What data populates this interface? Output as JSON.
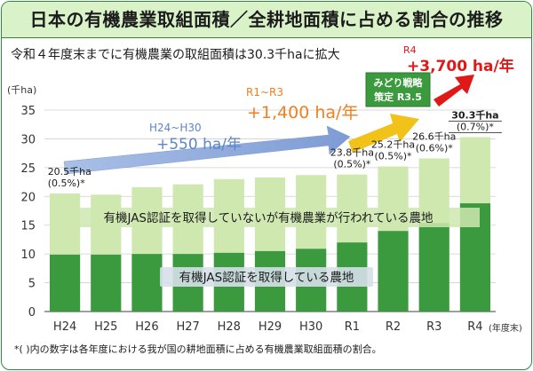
{
  "title": "日本の有機農業取組面積／全耕地面積に占める割合の推移",
  "subtitle": "令和４年度末までに有機農業の取組面積は30.3千haに拡大",
  "footnote": "*( )内の数字は各年度における我が国の耕地面積に占める有機農業取組面積の割合。",
  "colors": {
    "non_jas": "#cfe8b0",
    "jas": "#3a9a3d",
    "frame": "#2e8b3a",
    "title_band": "#d9f2c8",
    "blue_arrow": "#8aa6d8",
    "yellow_arrow": "#f0c21a",
    "red_arrow": "#e01818",
    "blue_text": "#5b86c8",
    "orange_text": "#f08020",
    "red_text": "#e01818",
    "green_box": "#3a9a3d"
  },
  "chart_data": {
    "type": "bar",
    "stacked": true,
    "categories": [
      "H24",
      "H25",
      "H26",
      "H27",
      "H28",
      "H29",
      "H30",
      "R1",
      "R2",
      "R3",
      "R4"
    ],
    "x_unit": "(年度末)",
    "ylabel": "(千ha)",
    "ylim": [
      0,
      35
    ],
    "yticks": [
      0,
      5,
      10,
      15,
      20,
      25,
      30,
      35
    ],
    "grid": true,
    "series": [
      {
        "name": "有機JAS認証を取得している農地",
        "values": [
          9.9,
          9.9,
          10.0,
          10.0,
          10.2,
          10.5,
          10.9,
          12.0,
          14.0,
          15.4,
          18.8
        ]
      },
      {
        "name": "有機JAS認証を取得していないが有機農業が行われている農地",
        "values": [
          10.6,
          10.4,
          11.6,
          12.1,
          12.8,
          12.8,
          12.8,
          11.8,
          11.2,
          11.2,
          11.5
        ]
      }
    ],
    "totals": [
      20.5,
      20.3,
      21.6,
      22.1,
      23.0,
      23.3,
      23.7,
      23.8,
      25.2,
      26.6,
      30.3
    ],
    "point_labels": [
      {
        "category": "H24",
        "line1": "20.5千ha",
        "line2": "(0.5%)*"
      },
      {
        "category": "R1",
        "line1": "23.8千ha",
        "line2": "(0.5%)*"
      },
      {
        "category": "R2",
        "line1": "25.2千ha",
        "line2": "(0.5%)*"
      },
      {
        "category": "R3",
        "line1": "26.6千ha",
        "line2": "(0.6%)*"
      },
      {
        "category": "R4",
        "line1": "30.3千ha",
        "line2": "(0.7%)*"
      }
    ],
    "annotations": {
      "h24_h30_period": "H24~H30",
      "h24_h30_rate": "+550 ha/年",
      "r1_r3_period": "R1~R3",
      "r1_r3_rate": "+1,400 ha/年",
      "r4_period": "R4",
      "r4_rate": "+3,700 ha/年",
      "strategy_line1": "みどり戦略",
      "strategy_line2": "策定 R3.5"
    }
  }
}
